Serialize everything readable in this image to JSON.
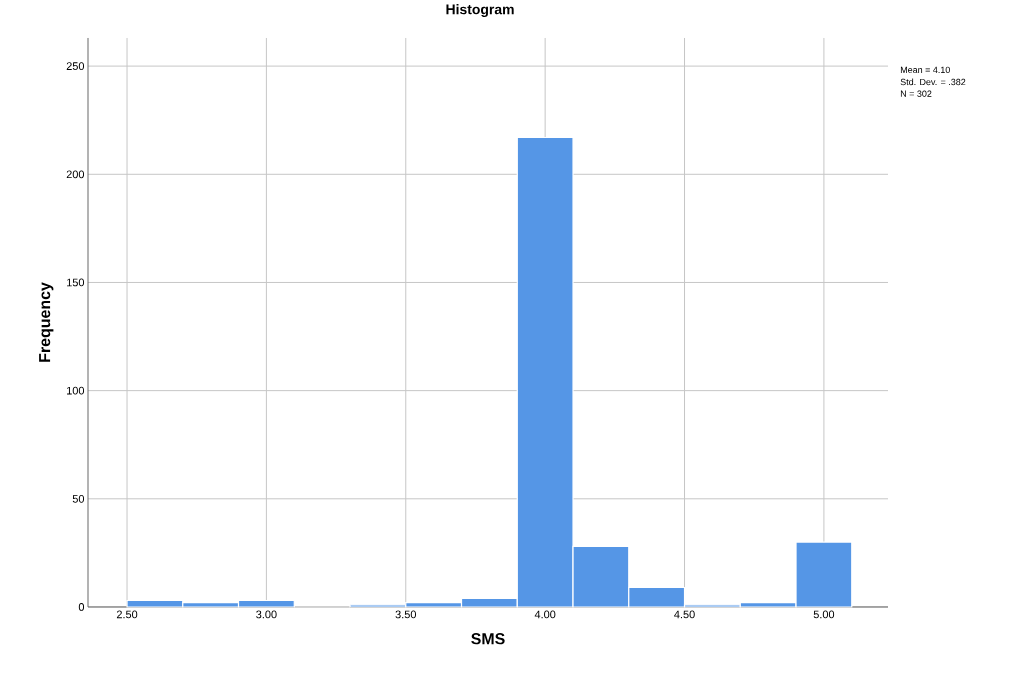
{
  "chart_data": {
    "type": "histogram",
    "title": "Histogram",
    "xlabel": "SMS",
    "ylabel": "Frequency",
    "bins": [
      2.5,
      2.7,
      2.9,
      3.1,
      3.3,
      3.5,
      3.7,
      3.9,
      4.1,
      4.3,
      4.5,
      4.7,
      4.9,
      5.1
    ],
    "values": [
      3,
      2,
      3,
      0,
      1,
      2,
      4,
      217,
      28,
      9,
      1,
      2,
      30
    ],
    "color": "#5596e6",
    "xlim": [
      2.36,
      5.23
    ],
    "ylim": [
      0,
      263
    ],
    "xticks": [
      {
        "value": 2.5,
        "label": "2.50"
      },
      {
        "value": 3.0,
        "label": "3.00"
      },
      {
        "value": 3.5,
        "label": "3.50"
      },
      {
        "value": 4.0,
        "label": "4.00"
      },
      {
        "value": 4.5,
        "label": "4.50"
      },
      {
        "value": 5.0,
        "label": "5.00"
      }
    ],
    "yticks": [
      0,
      50,
      100,
      150,
      200,
      250
    ],
    "grid": true,
    "annotations": [
      "Mean = 4.10",
      "Std. Dev. = .382",
      "N = 302"
    ]
  }
}
